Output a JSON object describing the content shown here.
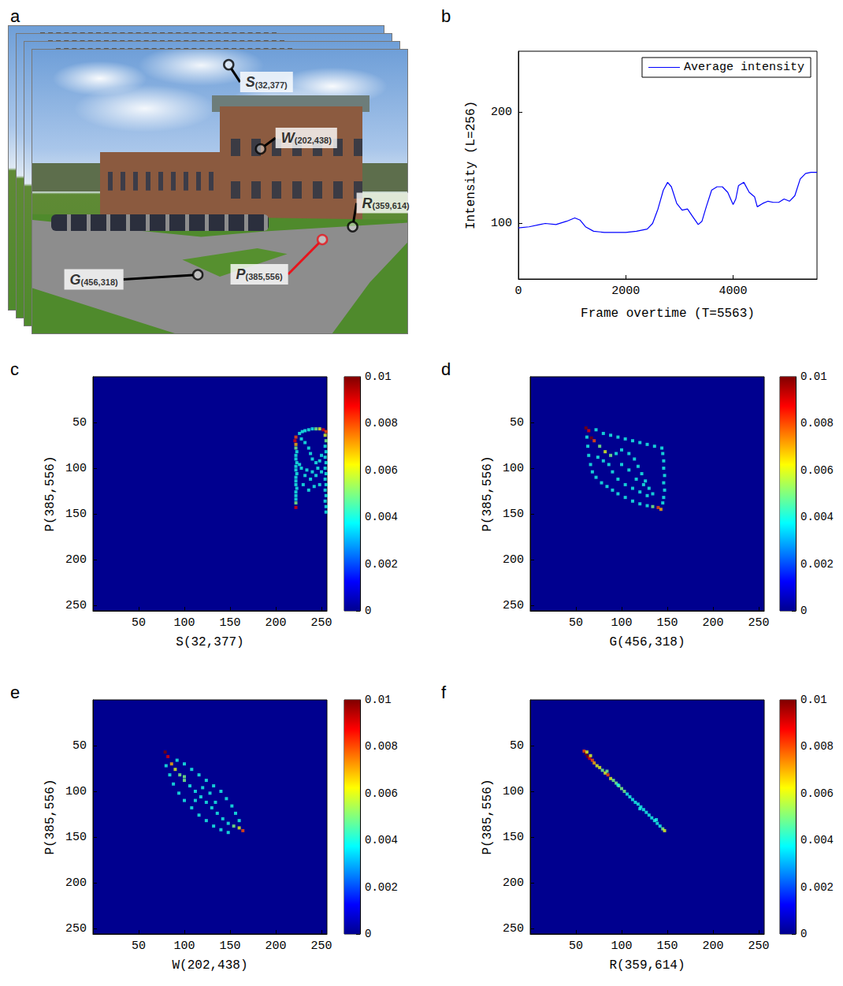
{
  "chart_data": [
    {
      "panel": "a",
      "type": "image",
      "xlim": [
        0,
        720
      ],
      "ylim": [
        576,
        0
      ],
      "tick_labels": false,
      "points": [
        {
          "label": "S",
          "subscript": "(32,377)",
          "row": 32,
          "col": 377,
          "color": "#000000"
        },
        {
          "label": "W",
          "subscript": "(202,438)",
          "row": 202,
          "col": 438,
          "color": "#000000"
        },
        {
          "label": "R",
          "subscript": "(359,614)",
          "row": 359,
          "col": 614,
          "color": "#000000"
        },
        {
          "label": "P",
          "subscript": "(385,556)",
          "row": 385,
          "col": 556,
          "color": "#e8141c"
        },
        {
          "label": "G",
          "subscript": "(456,318)",
          "row": 456,
          "col": 318,
          "color": "#000000"
        }
      ]
    },
    {
      "panel": "b",
      "type": "line",
      "xlabel": "Frame overtime (T=5563)",
      "ylabel": "Intensity (L=256)",
      "xlim": [
        0,
        5563
      ],
      "xticks": [
        0,
        2000,
        4000
      ],
      "ylim": [
        50,
        255
      ],
      "yticks": [
        100,
        200
      ],
      "legend": "upper right",
      "grid": false,
      "x": [
        0,
        200,
        400,
        500,
        700,
        900,
        1050,
        1150,
        1250,
        1400,
        1600,
        1800,
        2000,
        2200,
        2400,
        2500,
        2600,
        2700,
        2780,
        2850,
        2950,
        3050,
        3150,
        3250,
        3350,
        3420,
        3500,
        3600,
        3700,
        3800,
        3900,
        4000,
        4050,
        4100,
        4200,
        4300,
        4400,
        4450,
        4550,
        4650,
        4750,
        4850,
        4950,
        5050,
        5150,
        5250,
        5350,
        5450,
        5563
      ],
      "series": [
        {
          "name": "Average intensity",
          "color": "#0000ff",
          "values": [
            96,
            97,
            99,
            100,
            99,
            102,
            105,
            103,
            97,
            93,
            92,
            92,
            92,
            93,
            95,
            100,
            113,
            130,
            137,
            133,
            118,
            112,
            113,
            106,
            99,
            102,
            115,
            130,
            133,
            133,
            128,
            117,
            122,
            134,
            137,
            128,
            124,
            115,
            118,
            120,
            119,
            119,
            122,
            120,
            125,
            140,
            145,
            146,
            146
          ]
        }
      ]
    },
    {
      "panel": "c",
      "type": "heatmap",
      "xlabel": "S(32,377)",
      "ylabel": "P(385,556)",
      "xlim": [
        0,
        256
      ],
      "xticks": [
        50,
        100,
        150,
        200,
        250
      ],
      "ylim": [
        256,
        0
      ],
      "yticks": [
        50,
        100,
        150,
        200,
        250
      ],
      "colorbar": {
        "range": [
          0,
          0.01
        ],
        "ticks": [
          0,
          0.002,
          0.004,
          0.006,
          0.008,
          0.01
        ]
      },
      "cells": [
        [
          222,
          66,
          0.008
        ],
        [
          221,
          70,
          0.009
        ],
        [
          222,
          74,
          0.007
        ],
        [
          222,
          78,
          0.005
        ],
        [
          223,
          82,
          0.004
        ],
        [
          222,
          86,
          0.004
        ],
        [
          222,
          90,
          0.004
        ],
        [
          223,
          94,
          0.004
        ],
        [
          222,
          98,
          0.004
        ],
        [
          222,
          102,
          0.004
        ],
        [
          223,
          106,
          0.004
        ],
        [
          222,
          110,
          0.004
        ],
        [
          222,
          114,
          0.004
        ],
        [
          222,
          118,
          0.004
        ],
        [
          223,
          122,
          0.004
        ],
        [
          222,
          126,
          0.004
        ],
        [
          222,
          130,
          0.004
        ],
        [
          222,
          134,
          0.004
        ],
        [
          222,
          138,
          0.005
        ],
        [
          222,
          143,
          0.009
        ],
        [
          226,
          62,
          0.004
        ],
        [
          229,
          60,
          0.004
        ],
        [
          232,
          59,
          0.004
        ],
        [
          236,
          58,
          0.004
        ],
        [
          240,
          57,
          0.004
        ],
        [
          244,
          57,
          0.005
        ],
        [
          248,
          57,
          0.006
        ],
        [
          252,
          58,
          0.009
        ],
        [
          255,
          60,
          0.008
        ],
        [
          254,
          64,
          0.006
        ],
        [
          255,
          70,
          0.005
        ],
        [
          254,
          76,
          0.004
        ],
        [
          255,
          82,
          0.004
        ],
        [
          254,
          88,
          0.004
        ],
        [
          255,
          94,
          0.004
        ],
        [
          254,
          100,
          0.004
        ],
        [
          255,
          106,
          0.004
        ],
        [
          254,
          112,
          0.004
        ],
        [
          255,
          118,
          0.004
        ],
        [
          254,
          124,
          0.004
        ],
        [
          255,
          130,
          0.004
        ],
        [
          254,
          136,
          0.004
        ],
        [
          255,
          142,
          0.004
        ],
        [
          255,
          148,
          0.004
        ],
        [
          228,
          68,
          0.004
        ],
        [
          232,
          72,
          0.004
        ],
        [
          236,
          78,
          0.004
        ],
        [
          238,
          84,
          0.004
        ],
        [
          240,
          90,
          0.004
        ],
        [
          244,
          94,
          0.004
        ],
        [
          248,
          92,
          0.004
        ],
        [
          250,
          86,
          0.004
        ],
        [
          246,
          100,
          0.004
        ],
        [
          240,
          104,
          0.004
        ],
        [
          234,
          102,
          0.004
        ],
        [
          228,
          100,
          0.004
        ],
        [
          226,
          96,
          0.004
        ],
        [
          232,
          108,
          0.004
        ],
        [
          238,
          112,
          0.004
        ],
        [
          244,
          108,
          0.004
        ],
        [
          250,
          104,
          0.004
        ],
        [
          230,
          118,
          0.004
        ],
        [
          236,
          124,
          0.004
        ],
        [
          242,
          120,
          0.004
        ],
        [
          248,
          118,
          0.004
        ]
      ]
    },
    {
      "panel": "d",
      "type": "heatmap",
      "xlabel": "G(456,318)",
      "ylabel": "P(385,556)",
      "xlim": [
        0,
        256
      ],
      "xticks": [
        50,
        100,
        150,
        200,
        250
      ],
      "ylim": [
        256,
        0
      ],
      "yticks": [
        50,
        100,
        150,
        200,
        250
      ],
      "colorbar": {
        "range": [
          0,
          0.01
        ],
        "ticks": [
          0,
          0.002,
          0.004,
          0.006,
          0.008,
          0.01
        ]
      },
      "cells": [
        [
          61,
          56,
          0.01
        ],
        [
          64,
          59,
          0.009
        ],
        [
          67,
          67,
          0.01
        ],
        [
          70,
          70,
          0.008
        ],
        [
          140,
          143,
          0.008
        ],
        [
          143,
          145,
          0.007
        ],
        [
          72,
          58,
          0.004
        ],
        [
          80,
          62,
          0.004
        ],
        [
          88,
          64,
          0.004
        ],
        [
          96,
          66,
          0.004
        ],
        [
          104,
          68,
          0.004
        ],
        [
          112,
          70,
          0.004
        ],
        [
          120,
          72,
          0.004
        ],
        [
          128,
          74,
          0.004
        ],
        [
          136,
          76,
          0.004
        ],
        [
          144,
          78,
          0.004
        ],
        [
          145,
          84,
          0.004
        ],
        [
          146,
          92,
          0.004
        ],
        [
          146,
          100,
          0.004
        ],
        [
          147,
          108,
          0.004
        ],
        [
          146,
          116,
          0.004
        ],
        [
          147,
          124,
          0.004
        ],
        [
          146,
          132,
          0.004
        ],
        [
          145,
          138,
          0.004
        ],
        [
          62,
          66,
          0.004
        ],
        [
          63,
          76,
          0.004
        ],
        [
          64,
          86,
          0.004
        ],
        [
          66,
          96,
          0.004
        ],
        [
          68,
          104,
          0.004
        ],
        [
          72,
          110,
          0.004
        ],
        [
          78,
          116,
          0.004
        ],
        [
          84,
          120,
          0.004
        ],
        [
          90,
          124,
          0.004
        ],
        [
          96,
          128,
          0.004
        ],
        [
          104,
          132,
          0.004
        ],
        [
          112,
          136,
          0.004
        ],
        [
          120,
          139,
          0.004
        ],
        [
          128,
          141,
          0.004
        ],
        [
          134,
          142,
          0.005
        ],
        [
          76,
          76,
          0.005
        ],
        [
          82,
          82,
          0.006
        ],
        [
          88,
          86,
          0.005
        ],
        [
          94,
          84,
          0.004
        ],
        [
          100,
          80,
          0.004
        ],
        [
          108,
          84,
          0.004
        ],
        [
          114,
          90,
          0.004
        ],
        [
          118,
          98,
          0.004
        ],
        [
          122,
          106,
          0.004
        ],
        [
          126,
          114,
          0.004
        ],
        [
          130,
          122,
          0.004
        ],
        [
          134,
          128,
          0.004
        ],
        [
          128,
          130,
          0.004
        ],
        [
          120,
          126,
          0.004
        ],
        [
          112,
          122,
          0.004
        ],
        [
          104,
          118,
          0.004
        ],
        [
          96,
          112,
          0.004
        ],
        [
          90,
          104,
          0.004
        ],
        [
          86,
          96,
          0.004
        ],
        [
          80,
          92,
          0.004
        ],
        [
          74,
          88,
          0.004
        ],
        [
          100,
          96,
          0.004
        ],
        [
          108,
          102,
          0.004
        ],
        [
          116,
          112,
          0.004
        ],
        [
          124,
          118,
          0.004
        ]
      ]
    },
    {
      "panel": "e",
      "type": "heatmap",
      "xlabel": "W(202,438)",
      "ylabel": "P(385,556)",
      "xlim": [
        0,
        256
      ],
      "xticks": [
        50,
        100,
        150,
        200,
        250
      ],
      "ylim": [
        256,
        0
      ],
      "yticks": [
        50,
        100,
        150,
        200,
        250
      ],
      "colorbar": {
        "range": [
          0,
          0.01
        ],
        "ticks": [
          0,
          0.002,
          0.004,
          0.006,
          0.008,
          0.01
        ]
      },
      "cells": [
        [
          79,
          57,
          0.01
        ],
        [
          82,
          62,
          0.009
        ],
        [
          86,
          70,
          0.007
        ],
        [
          164,
          143,
          0.008
        ],
        [
          160,
          140,
          0.006
        ],
        [
          90,
          76,
          0.006
        ],
        [
          95,
          82,
          0.005
        ],
        [
          100,
          88,
          0.005
        ],
        [
          106,
          94,
          0.004
        ],
        [
          112,
          100,
          0.004
        ],
        [
          118,
          106,
          0.004
        ],
        [
          124,
          112,
          0.004
        ],
        [
          130,
          118,
          0.004
        ],
        [
          136,
          124,
          0.004
        ],
        [
          142,
          130,
          0.004
        ],
        [
          148,
          135,
          0.004
        ],
        [
          154,
          138,
          0.005
        ],
        [
          92,
          66,
          0.004
        ],
        [
          100,
          70,
          0.004
        ],
        [
          108,
          76,
          0.004
        ],
        [
          116,
          82,
          0.004
        ],
        [
          124,
          88,
          0.004
        ],
        [
          132,
          94,
          0.004
        ],
        [
          140,
          100,
          0.004
        ],
        [
          146,
          108,
          0.004
        ],
        [
          152,
          116,
          0.004
        ],
        [
          156,
          124,
          0.004
        ],
        [
          160,
          132,
          0.004
        ],
        [
          80,
          72,
          0.004
        ],
        [
          84,
          82,
          0.004
        ],
        [
          88,
          92,
          0.004
        ],
        [
          94,
          102,
          0.004
        ],
        [
          100,
          110,
          0.004
        ],
        [
          108,
          118,
          0.004
        ],
        [
          116,
          126,
          0.004
        ],
        [
          124,
          132,
          0.004
        ],
        [
          132,
          138,
          0.004
        ],
        [
          140,
          142,
          0.004
        ],
        [
          148,
          145,
          0.004
        ],
        [
          100,
          84,
          0.005
        ],
        [
          128,
          102,
          0.004
        ],
        [
          134,
          112,
          0.004
        ],
        [
          120,
          96,
          0.004
        ],
        [
          112,
          110,
          0.004
        ]
      ]
    },
    {
      "panel": "f",
      "type": "heatmap",
      "xlabel": "R(359,614)",
      "ylabel": "P(385,556)",
      "xlim": [
        0,
        256
      ],
      "xticks": [
        50,
        100,
        150,
        200,
        250
      ],
      "ylim": [
        256,
        0
      ],
      "yticks": [
        50,
        100,
        150,
        200,
        250
      ],
      "colorbar": {
        "range": [
          0,
          0.01
        ],
        "ticks": [
          0,
          0.002,
          0.004,
          0.006,
          0.008,
          0.01
        ]
      },
      "cells": [
        [
          59,
          56,
          0.008
        ],
        [
          61,
          59,
          0.01
        ],
        [
          63,
          62,
          0.01
        ],
        [
          65,
          64,
          0.009
        ],
        [
          68,
          66,
          0.008
        ],
        [
          70,
          69,
          0.007
        ],
        [
          73,
          72,
          0.006
        ],
        [
          76,
          74,
          0.006
        ],
        [
          79,
          77,
          0.005
        ],
        [
          82,
          80,
          0.006
        ],
        [
          85,
          82,
          0.008
        ],
        [
          88,
          86,
          0.006
        ],
        [
          91,
          88,
          0.005
        ],
        [
          94,
          91,
          0.005
        ],
        [
          97,
          94,
          0.005
        ],
        [
          100,
          97,
          0.005
        ],
        [
          103,
          100,
          0.005
        ],
        [
          106,
          103,
          0.004
        ],
        [
          109,
          106,
          0.004
        ],
        [
          112,
          109,
          0.004
        ],
        [
          115,
          112,
          0.004
        ],
        [
          118,
          114,
          0.004
        ],
        [
          121,
          117,
          0.004
        ],
        [
          124,
          120,
          0.004
        ],
        [
          127,
          123,
          0.004
        ],
        [
          130,
          126,
          0.004
        ],
        [
          133,
          129,
          0.004
        ],
        [
          136,
          132,
          0.004
        ],
        [
          139,
          135,
          0.004
        ],
        [
          142,
          138,
          0.004
        ],
        [
          145,
          141,
          0.005
        ],
        [
          147,
          143,
          0.006
        ],
        [
          62,
          57,
          0.006
        ],
        [
          66,
          61,
          0.006
        ],
        [
          84,
          78,
          0.005
        ],
        [
          96,
          93,
          0.004
        ],
        [
          120,
          119,
          0.004
        ],
        [
          138,
          131,
          0.004
        ]
      ]
    }
  ]
}
